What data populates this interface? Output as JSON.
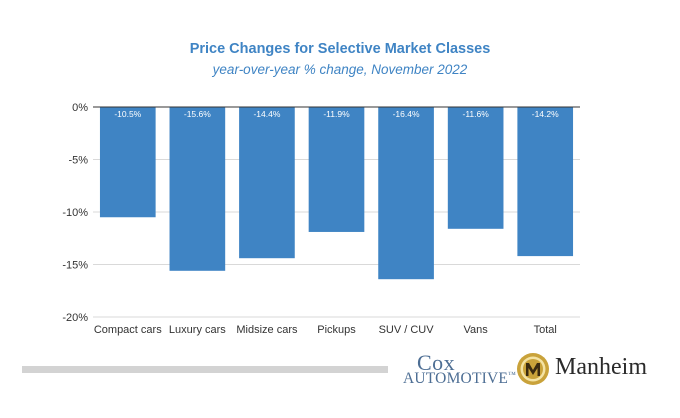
{
  "chart_data": {
    "type": "bar",
    "title": "Price Changes for Selective Market Classes",
    "subtitle": "year-over-year % change, November 2022",
    "categories": [
      "Compact cars",
      "Luxury cars",
      "Midsize cars",
      "Pickups",
      "SUV / CUV",
      "Vans",
      "Total"
    ],
    "values": [
      -10.5,
      -15.6,
      -14.4,
      -11.9,
      -16.4,
      -11.6,
      -14.2
    ],
    "data_labels": [
      "-10.5%",
      "-15.6%",
      "-14.4%",
      "-11.9%",
      "-16.4%",
      "-11.6%",
      "-14.2%"
    ],
    "ylim": [
      -20,
      0
    ],
    "yticks": [
      0,
      -5,
      -10,
      -15,
      -20
    ],
    "ytick_labels": [
      "0%",
      "-5%",
      "-10%",
      "-15%",
      "-20%"
    ],
    "xlabel": "",
    "ylabel": "",
    "grid": true,
    "bar_color": "#3f84c4"
  },
  "logos": {
    "cox_line1": "Cox",
    "cox_line2": "AUTOMOTIVE",
    "cox_tm": "™",
    "manheim": "Manheim"
  },
  "colors": {
    "accent": "#3f84c4",
    "grid": "#d9d9d9",
    "text": "#333333",
    "footer_bar": "#d3d3d3",
    "emblem_gold": "#c9a23a"
  }
}
